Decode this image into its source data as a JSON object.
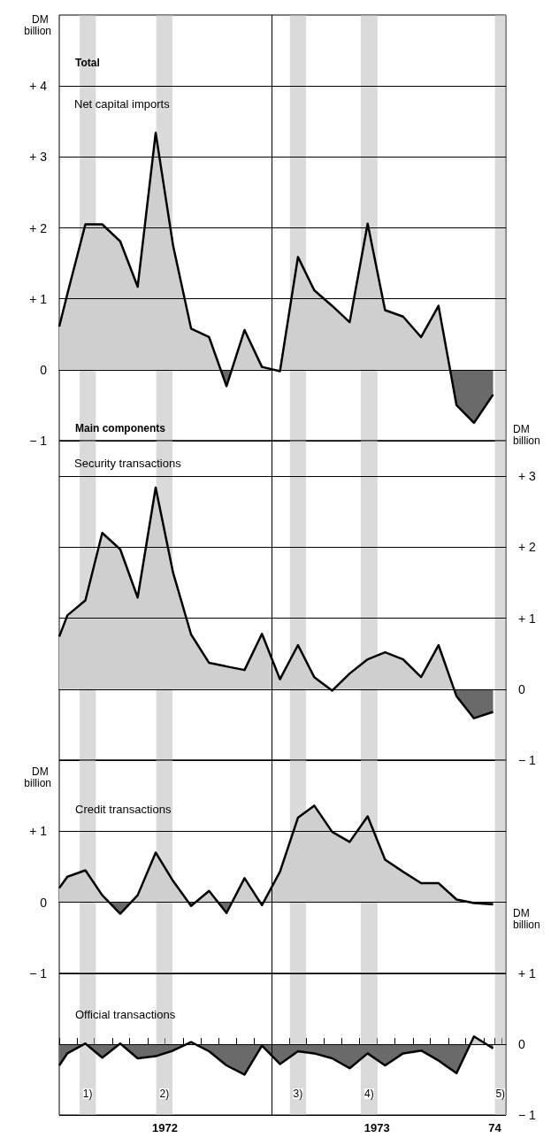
{
  "chart_data": [
    {
      "type": "area",
      "title": "Total",
      "subtitle": "Net capital imports",
      "ylabel": "DM billion",
      "x": [
        "1972-01-01",
        "1972-01-15",
        "1972-02-15",
        "1972-03-15",
        "1972-04-15",
        "1972-05-15",
        "1972-06-15",
        "1972-07-15",
        "1972-08-15",
        "1972-09-15",
        "1972-10-15",
        "1972-11-15",
        "1972-12-15",
        "1973-01-15",
        "1973-02-15",
        "1973-03-15",
        "1973-04-15",
        "1973-05-15",
        "1973-06-15",
        "1973-07-15",
        "1973-08-15",
        "1973-09-15",
        "1973-10-15",
        "1973-11-15",
        "1973-12-15",
        "1974-01-17"
      ],
      "series": [
        {
          "color": "#000000",
          "values": [
            0.61,
            1.07,
            2.05,
            2.05,
            1.81,
            1.17,
            3.34,
            1.75,
            0.58,
            0.46,
            -0.23,
            0.56,
            0.04,
            -0.02,
            1.59,
            1.12,
            0.9,
            0.67,
            2.06,
            0.84,
            0.75,
            0.46,
            0.9,
            -0.5,
            -0.75,
            -0.35
          ]
        }
      ],
      "xlim": [
        "1972-01-01",
        "1974-02-08"
      ],
      "ylim": [
        -1,
        5
      ],
      "yticks": [
        {
          "value": -1,
          "label": "− 1"
        },
        {
          "value": 0,
          "label": "0"
        },
        {
          "value": 1,
          "label": "+ 1"
        },
        {
          "value": 2,
          "label": "+ 2"
        },
        {
          "value": 3,
          "label": "+ 3"
        },
        {
          "value": 4,
          "label": "+ 4"
        }
      ],
      "tick_labels": "y",
      "grid": "y",
      "ref_lines": [
        {
          "axis": "x",
          "value": "1973-01-01",
          "color": "#000000"
        }
      ],
      "bands": [
        {
          "axis": "x",
          "from": "1972-02-05",
          "to": "1972-03-04",
          "color": "#bbbbbb"
        },
        {
          "axis": "x",
          "from": "1972-06-16",
          "to": "1972-07-14",
          "color": "#bbbbbb"
        },
        {
          "axis": "x",
          "from": "1973-02-01",
          "to": "1973-03-01",
          "color": "#bbbbbb"
        },
        {
          "axis": "x",
          "from": "1973-06-03",
          "to": "1973-07-02",
          "color": "#bbbbbb"
        },
        {
          "axis": "x",
          "from": "1974-01-20",
          "to": "1974-02-08",
          "color": "#bbbbbb"
        }
      ]
    },
    {
      "type": "area",
      "title": "Main components",
      "subtitle": "Security transactions",
      "y2label": "DM billion",
      "x": [
        "1972-01-01",
        "1972-01-15",
        "1972-02-15",
        "1972-03-15",
        "1972-04-15",
        "1972-05-15",
        "1972-06-15",
        "1972-07-15",
        "1972-08-15",
        "1972-09-15",
        "1972-10-15",
        "1972-11-15",
        "1972-12-15",
        "1973-01-15",
        "1973-02-15",
        "1973-03-15",
        "1973-04-15",
        "1973-05-15",
        "1973-06-15",
        "1973-07-15",
        "1973-08-15",
        "1973-09-15",
        "1973-10-15",
        "1973-11-15",
        "1973-12-15",
        "1974-01-17"
      ],
      "series": [
        {
          "color": "#000000",
          "axis": "y2",
          "values": [
            0.74,
            1.04,
            1.25,
            2.2,
            1.97,
            1.29,
            2.84,
            1.64,
            0.77,
            0.37,
            0.32,
            0.27,
            0.78,
            0.14,
            0.62,
            0.17,
            -0.02,
            0.22,
            0.42,
            0.52,
            0.42,
            0.17,
            0.62,
            -0.1,
            -0.41,
            -0.32
          ]
        }
      ],
      "xlim": [
        "1972-01-01",
        "1974-02-08"
      ],
      "y2lim": [
        -1,
        3.5
      ],
      "y2ticks": [
        {
          "value": -1,
          "label": "− 1"
        },
        {
          "value": 0,
          "label": "0"
        },
        {
          "value": 1,
          "label": "+ 1"
        },
        {
          "value": 2,
          "label": "+ 2"
        },
        {
          "value": 3,
          "label": "+ 3"
        }
      ],
      "tick_labels": "y",
      "grid": "y",
      "ref_lines": [
        {
          "axis": "x",
          "value": "1973-01-01",
          "color": "#000000"
        }
      ],
      "bands": [
        {
          "axis": "x",
          "from": "1972-02-05",
          "to": "1972-03-04",
          "color": "#bbbbbb"
        },
        {
          "axis": "x",
          "from": "1972-06-16",
          "to": "1972-07-14",
          "color": "#bbbbbb"
        },
        {
          "axis": "x",
          "from": "1973-02-01",
          "to": "1973-03-01",
          "color": "#bbbbbb"
        },
        {
          "axis": "x",
          "from": "1973-06-03",
          "to": "1973-07-02",
          "color": "#bbbbbb"
        },
        {
          "axis": "x",
          "from": "1974-01-20",
          "to": "1974-02-08",
          "color": "#bbbbbb"
        }
      ]
    },
    {
      "type": "area",
      "title": "Credit transactions",
      "ylabel": "DM billion",
      "x": [
        "1972-01-01",
        "1972-01-15",
        "1972-02-15",
        "1972-03-15",
        "1972-04-15",
        "1972-05-15",
        "1972-06-15",
        "1972-07-15",
        "1972-08-15",
        "1972-09-15",
        "1972-10-15",
        "1972-11-15",
        "1972-12-15",
        "1973-01-15",
        "1973-02-15",
        "1973-03-15",
        "1973-04-15",
        "1973-05-15",
        "1973-06-15",
        "1973-07-15",
        "1973-08-15",
        "1973-09-15",
        "1973-10-15",
        "1973-11-15",
        "1973-12-15",
        "1974-01-17"
      ],
      "series": [
        {
          "color": "#000000",
          "values": [
            0.2,
            0.36,
            0.45,
            0.1,
            -0.16,
            0.1,
            0.7,
            0.3,
            -0.05,
            0.16,
            -0.15,
            0.34,
            -0.04,
            0.43,
            1.19,
            1.36,
            0.99,
            0.85,
            1.21,
            0.6,
            0.43,
            0.27,
            0.27,
            0.04,
            -0.01,
            -0.03
          ]
        }
      ],
      "xlim": [
        "1972-01-01",
        "1974-02-08"
      ],
      "ylim": [
        -1,
        2
      ],
      "yticks": [
        {
          "value": -1,
          "label": "− 1"
        },
        {
          "value": 0,
          "label": "0"
        },
        {
          "value": 1,
          "label": "+ 1"
        }
      ],
      "tick_labels": "y",
      "grid": "y",
      "ref_lines": [
        {
          "axis": "x",
          "value": "1973-01-01",
          "color": "#000000"
        }
      ],
      "bands": [
        {
          "axis": "x",
          "from": "1972-02-05",
          "to": "1972-03-04",
          "color": "#bbbbbb"
        },
        {
          "axis": "x",
          "from": "1972-06-16",
          "to": "1972-07-14",
          "color": "#bbbbbb"
        },
        {
          "axis": "x",
          "from": "1973-02-01",
          "to": "1973-03-01",
          "color": "#bbbbbb"
        },
        {
          "axis": "x",
          "from": "1973-06-03",
          "to": "1973-07-02",
          "color": "#bbbbbb"
        },
        {
          "axis": "x",
          "from": "1974-01-20",
          "to": "1974-02-08",
          "color": "#bbbbbb"
        }
      ]
    },
    {
      "type": "area",
      "title": "Official transactions",
      "y2label": "DM billion",
      "x": [
        "1972-01-01",
        "1972-01-15",
        "1972-02-15",
        "1972-03-15",
        "1972-04-15",
        "1972-05-15",
        "1972-06-15",
        "1972-07-15",
        "1972-08-15",
        "1972-09-15",
        "1972-10-15",
        "1972-11-15",
        "1972-12-15",
        "1973-01-15",
        "1973-02-15",
        "1973-03-15",
        "1973-04-15",
        "1973-05-15",
        "1973-06-15",
        "1973-07-15",
        "1973-08-15",
        "1973-09-15",
        "1973-10-15",
        "1973-11-15",
        "1973-12-15",
        "1974-01-17"
      ],
      "series": [
        {
          "color": "#000000",
          "axis": "y2",
          "values": [
            -0.3,
            -0.13,
            0.01,
            -0.19,
            0.01,
            -0.2,
            -0.17,
            -0.09,
            0.03,
            -0.1,
            -0.3,
            -0.43,
            -0.02,
            -0.28,
            -0.1,
            -0.13,
            -0.2,
            -0.34,
            -0.13,
            -0.3,
            -0.13,
            -0.09,
            -0.23,
            -0.41,
            0.11,
            -0.06
          ]
        }
      ],
      "xlim": [
        "1972-01-01",
        "1974-02-08"
      ],
      "y2lim": [
        -1,
        1
      ],
      "y2ticks": [
        {
          "value": -1,
          "label": "− 1"
        },
        {
          "value": 0,
          "label": "0"
        },
        {
          "value": 1,
          "label": "+ 1"
        }
      ],
      "xticks": [
        {
          "value": "1972-01-01",
          "label": null
        },
        {
          "value": "1972-02-01",
          "label": null
        },
        {
          "value": "1972-03-01",
          "label": null
        },
        {
          "value": "1972-04-01",
          "label": null
        },
        {
          "value": "1972-05-01",
          "label": null
        },
        {
          "value": "1972-06-01",
          "label": null
        },
        {
          "value": "1972-07-01",
          "label": "1972"
        },
        {
          "value": "1972-08-01",
          "label": null
        },
        {
          "value": "1972-09-01",
          "label": null
        },
        {
          "value": "1972-10-01",
          "label": null
        },
        {
          "value": "1972-11-01",
          "label": null
        },
        {
          "value": "1972-12-01",
          "label": null
        },
        {
          "value": "1973-01-01",
          "label": null
        },
        {
          "value": "1973-02-01",
          "label": null
        },
        {
          "value": "1973-03-01",
          "label": null
        },
        {
          "value": "1973-04-01",
          "label": null
        },
        {
          "value": "1973-05-01",
          "label": null
        },
        {
          "value": "1973-06-01",
          "label": null
        },
        {
          "value": "1973-07-01",
          "label": "1973"
        },
        {
          "value": "1973-08-01",
          "label": null
        },
        {
          "value": "1973-09-01",
          "label": null
        },
        {
          "value": "1973-10-01",
          "label": null
        },
        {
          "value": "1973-11-01",
          "label": null
        },
        {
          "value": "1973-12-01",
          "label": null
        },
        {
          "value": "1974-01-01",
          "label": null
        },
        {
          "value": "1974-01-20",
          "label": "74"
        },
        {
          "value": "1974-02-01",
          "label": null
        }
      ],
      "grid": "y",
      "ref_lines": [
        {
          "axis": "x",
          "value": "1973-01-01",
          "color": "#000000"
        }
      ],
      "bands": [
        {
          "axis": "x",
          "from": "1972-02-05",
          "to": "1972-03-04",
          "label": "1)",
          "color": "#bbbbbb"
        },
        {
          "axis": "x",
          "from": "1972-06-16",
          "to": "1972-07-14",
          "label": "2)",
          "color": "#bbbbbb"
        },
        {
          "axis": "x",
          "from": "1973-02-01",
          "to": "1973-03-01",
          "label": "3)",
          "color": "#bbbbbb"
        },
        {
          "axis": "x",
          "from": "1973-06-03",
          "to": "1973-07-02",
          "label": "4)",
          "color": "#bbbbbb"
        },
        {
          "axis": "x",
          "from": "1974-01-20",
          "to": "1974-02-08",
          "label": "5)",
          "color": "#bbbbbb"
        }
      ]
    }
  ]
}
